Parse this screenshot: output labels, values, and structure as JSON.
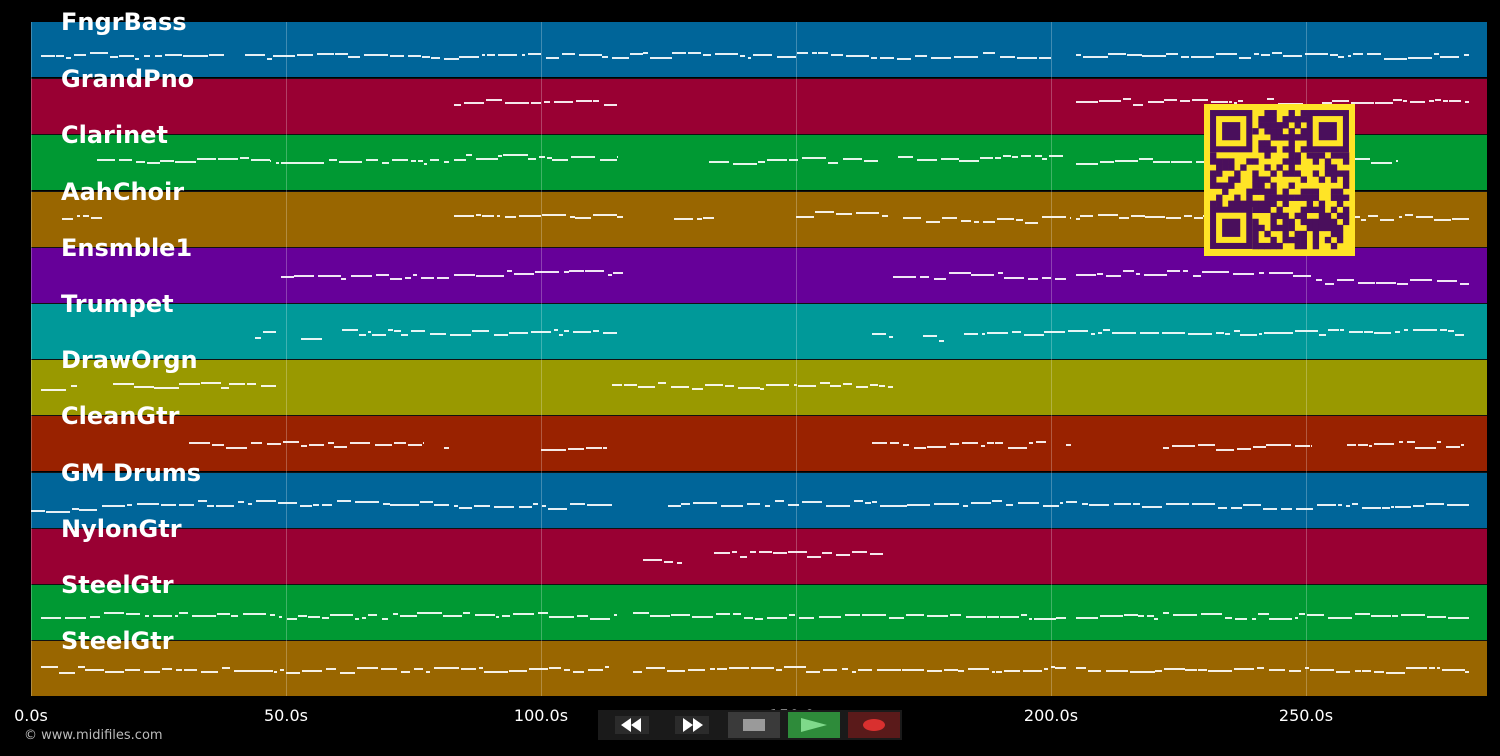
{
  "tracks": [
    {
      "name": "FngrBass",
      "color": "#006599",
      "notes": [
        [
          2,
          38,
          0.6
        ],
        [
          42,
          84,
          0.6
        ],
        [
          84,
          120,
          0.6
        ],
        [
          120,
          200,
          0.6
        ],
        [
          205,
          282,
          0.6
        ]
      ]
    },
    {
      "name": "GrandPno",
      "color": "#990033",
      "notes": [
        [
          83,
          115,
          0.4
        ],
        [
          205,
          282,
          0.4
        ]
      ]
    },
    {
      "name": "Clarinet",
      "color": "#009933",
      "notes": [
        [
          13,
          47,
          0.45
        ],
        [
          48,
          82,
          0.45
        ],
        [
          83,
          115,
          0.4
        ],
        [
          133,
          166,
          0.45
        ],
        [
          170,
          203,
          0.4
        ],
        [
          205,
          268,
          0.45
        ]
      ]
    },
    {
      "name": "AahChoir",
      "color": "#996600",
      "notes": [
        [
          6,
          14,
          0.45
        ],
        [
          83,
          116,
          0.45
        ],
        [
          126,
          134,
          0.45
        ],
        [
          150,
          168,
          0.4
        ],
        [
          171,
          204,
          0.5
        ],
        [
          205,
          282,
          0.45
        ]
      ]
    },
    {
      "name": "Ensmble1",
      "color": "#660099",
      "notes": [
        [
          49,
          82,
          0.5
        ],
        [
          83,
          116,
          0.45
        ],
        [
          169,
          203,
          0.5
        ],
        [
          205,
          251,
          0.45
        ],
        [
          252,
          282,
          0.6
        ]
      ]
    },
    {
      "name": "Trumpet",
      "color": "#009999",
      "notes": [
        [
          44,
          48,
          0.55
        ],
        [
          53,
          57,
          0.6
        ],
        [
          61,
          115,
          0.5
        ],
        [
          165,
          169,
          0.55
        ],
        [
          175,
          179,
          0.6
        ],
        [
          183,
          281,
          0.5
        ]
      ]
    },
    {
      "name": "DrawOrgn",
      "color": "#999900",
      "notes": [
        [
          2,
          9,
          0.5
        ],
        [
          16,
          48,
          0.45
        ],
        [
          114,
          169,
          0.45
        ]
      ]
    },
    {
      "name": "CleanGtr",
      "color": "#992200",
      "notes": [
        [
          31,
          77,
          0.5
        ],
        [
          81,
          82,
          0.55
        ],
        [
          100,
          113,
          0.55
        ],
        [
          165,
          199,
          0.5
        ],
        [
          203,
          204,
          0.55
        ],
        [
          222,
          251,
          0.55
        ],
        [
          258,
          281,
          0.5
        ]
      ]
    },
    {
      "name": "GM Drums",
      "color": "#006599",
      "notes": [
        [
          0,
          13,
          0.65
        ],
        [
          14,
          82,
          0.55
        ],
        [
          83,
          114,
          0.6
        ],
        [
          125,
          206,
          0.55
        ],
        [
          206,
          282,
          0.6
        ]
      ]
    },
    {
      "name": "NylonGtr",
      "color": "#990033",
      "notes": [
        [
          120,
          128,
          0.55
        ],
        [
          134,
          167,
          0.45
        ]
      ]
    },
    {
      "name": "SteelGtr",
      "color": "#009933",
      "notes": [
        [
          2,
          115,
          0.55
        ],
        [
          118,
          203,
          0.55
        ],
        [
          205,
          282,
          0.55
        ]
      ]
    },
    {
      "name": "SteelGtr",
      "color": "#996600",
      "notes": [
        [
          2,
          114,
          0.5
        ],
        [
          118,
          203,
          0.5
        ],
        [
          205,
          282,
          0.5
        ]
      ]
    }
  ],
  "timeline": {
    "max_seconds": 285.5,
    "ticks": [
      "0.0s",
      "50.0s",
      "100.0s",
      "150.0s",
      "200.0s",
      "250.0s"
    ],
    "tick_values": [
      0,
      50,
      100,
      150,
      200,
      250
    ]
  },
  "transport": {
    "rewind_icon": "rewind-icon",
    "fast_forward_icon": "fast-forward-icon",
    "stop_icon": "stop-icon",
    "play_icon": "play-icon",
    "record_icon": "record-icon",
    "play_color": "#2e8b3a",
    "record_color": "#d9302f"
  },
  "copyright": "© www.midifiles.com",
  "qr_code": {
    "colors": [
      "#ffe426",
      "#4a0f5c"
    ]
  }
}
